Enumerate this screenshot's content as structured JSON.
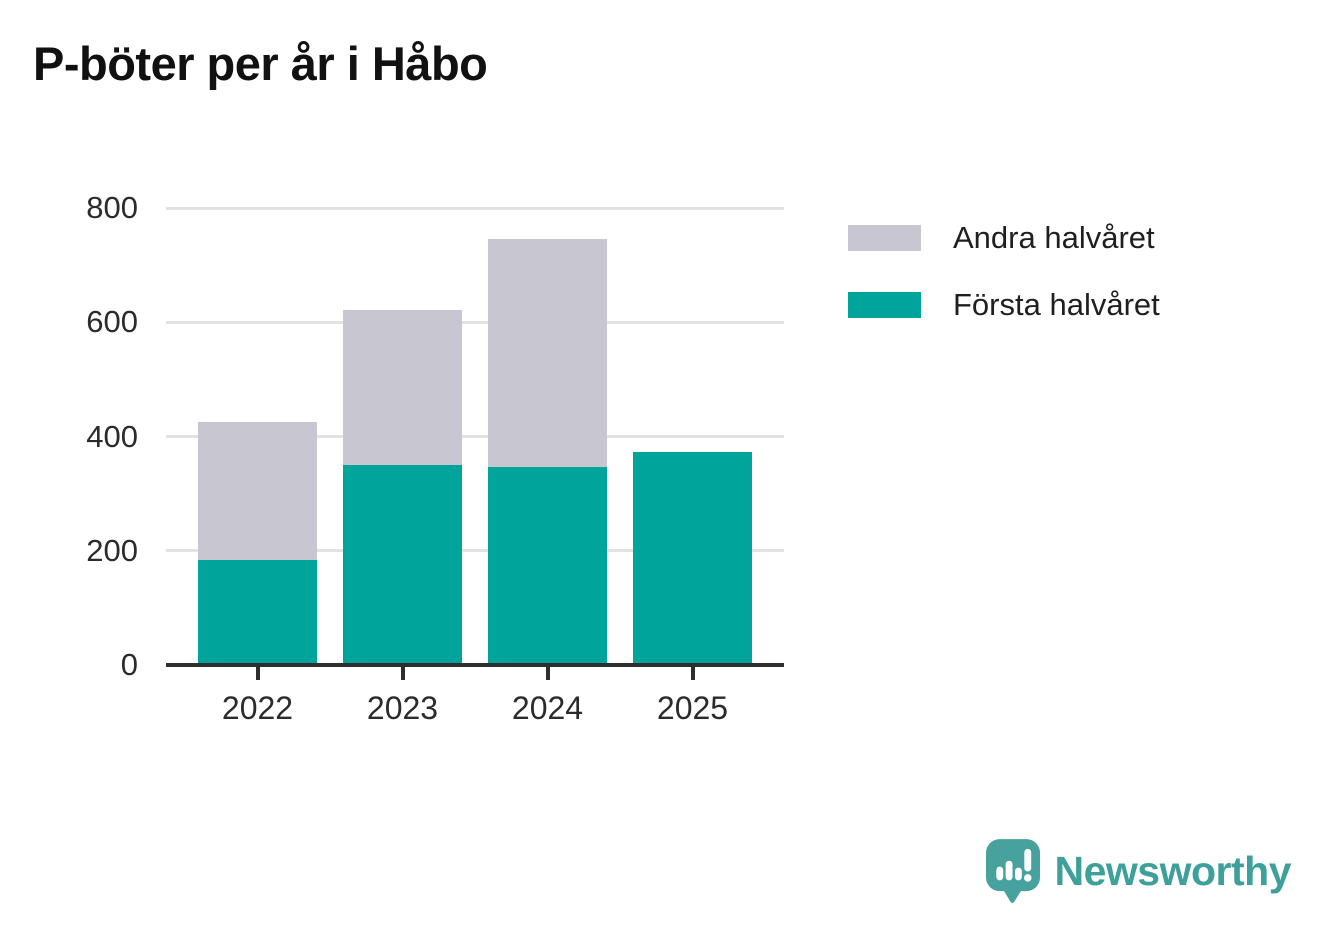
{
  "title": "P-böter per år i Håbo",
  "colors": {
    "first_half": "#00a49a",
    "second_half": "#c8c7d1",
    "axis": "#2e2e2e",
    "gridline": "#e2e2e4",
    "logo_mark": "#47a29e",
    "logo_text": "#3da09b"
  },
  "chart_data": {
    "type": "bar",
    "stacked": true,
    "title": "P-böter per år i Håbo",
    "categories": [
      "2022",
      "2023",
      "2024",
      "2025"
    ],
    "series": [
      {
        "name": "Första halvåret",
        "color_key": "first_half",
        "values": [
          183,
          351,
          347,
          373
        ]
      },
      {
        "name": "Andra halvåret",
        "color_key": "second_half",
        "values": [
          243,
          271,
          398,
          0
        ]
      }
    ],
    "totals": [
      426,
      622,
      745,
      373
    ],
    "xlabel": "",
    "ylabel": "",
    "ylim": [
      0,
      800
    ],
    "yticks": [
      0,
      200,
      400,
      600,
      800
    ],
    "grid": true,
    "legend_position": "upper-right-outside",
    "legend_order": [
      "Andra halvåret",
      "Första halvåret"
    ]
  },
  "legend": {
    "items": [
      {
        "label": "Andra halvåret",
        "color_key": "second_half"
      },
      {
        "label": "Första halvåret",
        "color_key": "first_half"
      }
    ]
  },
  "footer": {
    "brand": "Newsworthy"
  }
}
